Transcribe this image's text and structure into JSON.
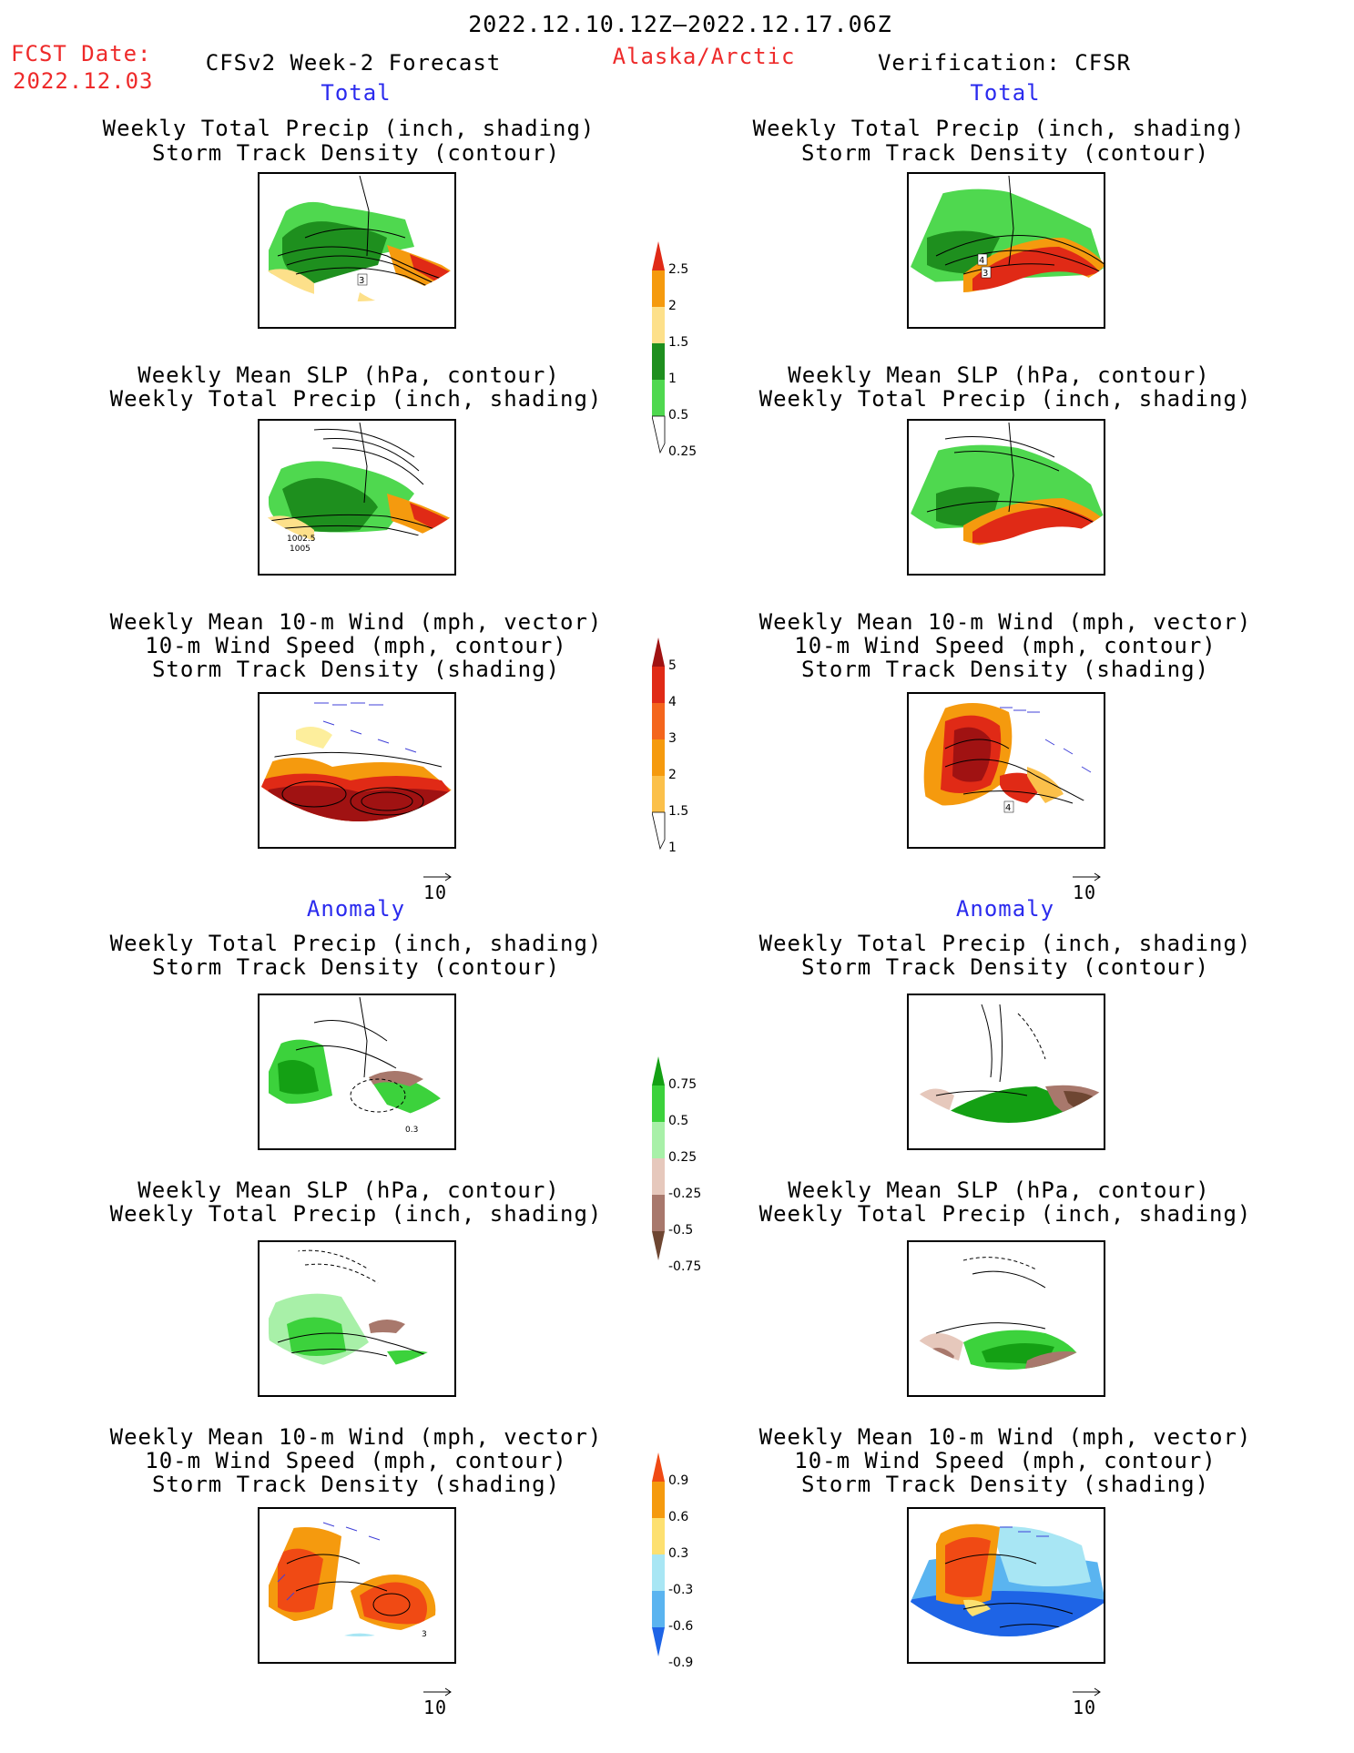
{
  "header": {
    "date_range": "2022.12.10.12Z–2022.12.17.06Z",
    "fcst_label": "FCST Date:",
    "fcst_date": "2022.12.03",
    "model": "CFSv2 Week-2 Forecast",
    "region": "Alaska/Arctic",
    "verification": "Verification: CFSR"
  },
  "sections": {
    "total": "Total",
    "anomaly": "Anomaly"
  },
  "titles": {
    "precip_storm": [
      "Weekly Total Precip (inch, shading)",
      "Storm Track Density (contour)"
    ],
    "slp_precip": [
      "Weekly Mean SLP (hPa, contour)",
      "Weekly Total Precip (inch, shading)"
    ],
    "wind_storm": [
      "Weekly Mean 10-m Wind (mph, vector)",
      "10-m Wind Speed (mph, contour)",
      "Storm Track Density (shading)"
    ]
  },
  "map_labels": {
    "fcst_precip_storm": "3",
    "cfsr_precip_storm_a": "4",
    "cfsr_precip_storm_b": "3",
    "fcst_slp_a": "1002.5",
    "fcst_slp_b": "1005",
    "cfsr_wind_storm": "4",
    "anom_fcst_precip": "0.3",
    "anom_fcst_wind": "3"
  },
  "vector_ref": "10",
  "colorbars": {
    "precip_total": {
      "labels": [
        "2.5",
        "2",
        "1.5",
        "1",
        "0.5",
        "0.25"
      ],
      "colors": [
        "#e02a16",
        "#f59a0e",
        "#fde08a",
        "#1e8f1e",
        "#4fd84f",
        "#b4f5b4"
      ]
    },
    "storm_total": {
      "labels": [
        "5",
        "4",
        "3",
        "2",
        "1.5",
        "1"
      ],
      "colors": [
        "#a01212",
        "#e02a16",
        "#f4651c",
        "#f59a0e",
        "#fbc04a",
        "#fdee9c"
      ]
    },
    "precip_anom": {
      "labels": [
        "0.75",
        "0.5",
        "0.25",
        "-0.25",
        "-0.5",
        "-0.75"
      ],
      "colors": [
        "#14a014",
        "#3cd23c",
        "#a8f0a8",
        "#e6c8bc",
        "#a8786c",
        "#6e4632"
      ]
    },
    "storm_anom": {
      "labels": [
        "0.9",
        "0.6",
        "0.3",
        "-0.3",
        "-0.6",
        "-0.9"
      ],
      "colors": [
        "#f04a14",
        "#f59a0e",
        "#fde070",
        "#a8e6f4",
        "#5ab4f0",
        "#1e64e6"
      ]
    }
  },
  "colors": {
    "title_red": "#ee2a2a",
    "section_blue": "#2a2aee"
  }
}
